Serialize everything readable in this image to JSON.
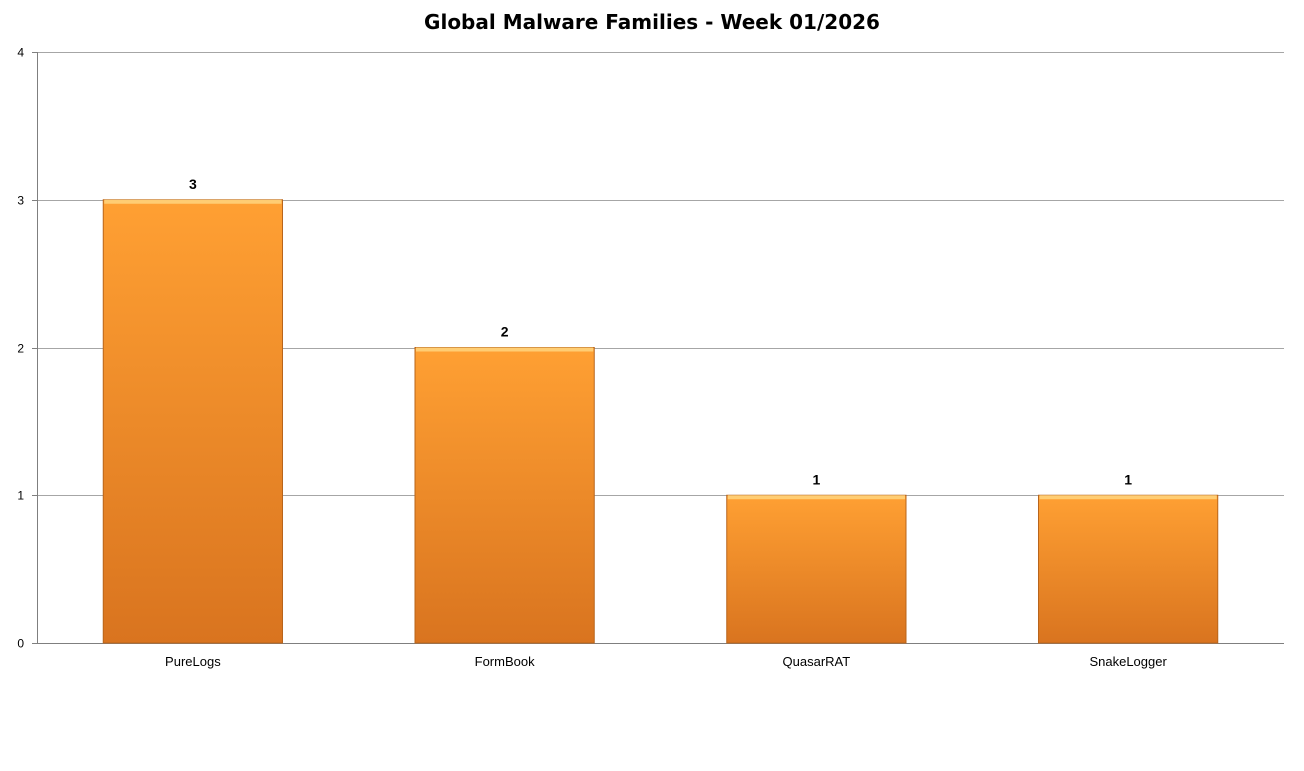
{
  "chart_data": {
    "type": "bar",
    "title": "Global Malware Families - Week 01/2026",
    "xlabel": "",
    "ylabel": "",
    "categories": [
      "PureLogs",
      "FormBook",
      "QuasarRAT",
      "SnakeLogger"
    ],
    "values": [
      3,
      2,
      1,
      1
    ],
    "ylim": [
      0,
      4
    ],
    "yticks": [
      0,
      1,
      2,
      3,
      4
    ],
    "grid": true,
    "legend": "none",
    "data_labels": true,
    "colors": {
      "bar_top": "#ffa033",
      "bar_bottom": "#d9741f",
      "bar_highlight": "#ffd27a",
      "bar_edge": "#b8651c",
      "grid": "#a6a6a6",
      "axis": "#7f7f7f"
    }
  }
}
